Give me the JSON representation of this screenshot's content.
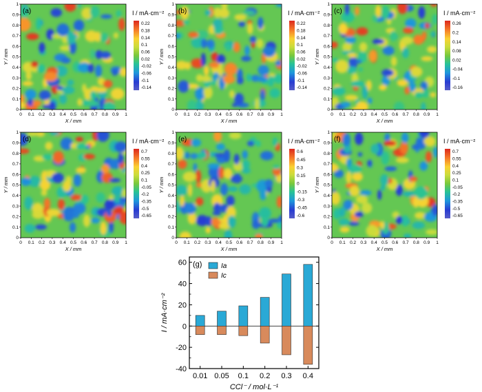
{
  "maps": [
    {
      "panel": "(a)",
      "ticks": [
        "0.22",
        "0.18",
        "0.14",
        "0.1",
        "0.06",
        "0.02",
        "-0.02",
        "-0.06",
        "-0.1",
        "-0.14"
      ],
      "seed": 11
    },
    {
      "panel": "(b)",
      "ticks": [
        "0.22",
        "0.18",
        "0.14",
        "0.1",
        "0.06",
        "0.02",
        "-0.02",
        "-0.06",
        "-0.1",
        "-0.14"
      ],
      "seed": 23
    },
    {
      "panel": "(c)",
      "ticks": [
        "0.26",
        "0.2",
        "0.14",
        "0.08",
        "0.02",
        "-0.04",
        "-0.1",
        "-0.16"
      ],
      "seed": 37
    },
    {
      "panel": "(d)",
      "ticks": [
        "0.7",
        "0.55",
        "0.4",
        "0.25",
        "0.1",
        "-0.05",
        "-0.2",
        "-0.35",
        "-0.5",
        "-0.65"
      ],
      "seed": 41
    },
    {
      "panel": "(e)",
      "ticks": [
        "0.6",
        "0.45",
        "0.3",
        "0.15",
        "0",
        "-0.15",
        "-0.3",
        "-0.45",
        "-0.6"
      ],
      "seed": 53
    },
    {
      "panel": "(f)",
      "ticks": [
        "0.7",
        "0.55",
        "0.4",
        "0.25",
        "0.1",
        "-0.05",
        "-0.2",
        "-0.35",
        "-0.5",
        "-0.65"
      ],
      "seed": 67
    }
  ],
  "map_axes": {
    "xlabel": "X / mm",
    "ylabel": "Y / mm",
    "colorbar_label": "I / mA·cm⁻²",
    "ticks": [
      "0",
      "0.1",
      "0.2",
      "0.3",
      "0.4",
      "0.5",
      "0.6",
      "0.7",
      "0.8",
      "0.9",
      "1"
    ]
  },
  "colors": {
    "accent_ia": "#2aa9d6",
    "accent_ic": "#d88a5c"
  },
  "chart_data": {
    "type": "bar",
    "panel": "(g)",
    "categories": [
      "0.01",
      "0.05",
      "0.1",
      "0.2",
      "0.3",
      "0.4"
    ],
    "series": [
      {
        "name": "Ia",
        "values": [
          10,
          14,
          19,
          27,
          49,
          58
        ]
      },
      {
        "name": "Ic",
        "values": [
          -8,
          -8,
          -9,
          -16,
          -27,
          -36
        ]
      }
    ],
    "xlabel": "CCl⁻ / mol·L⁻¹",
    "ylabel": "I / mA·cm⁻²",
    "ylim": [
      -40,
      65
    ],
    "yticks": [
      "60",
      "40",
      "20",
      "0",
      "-20",
      "-40"
    ],
    "legend": "top-left"
  }
}
